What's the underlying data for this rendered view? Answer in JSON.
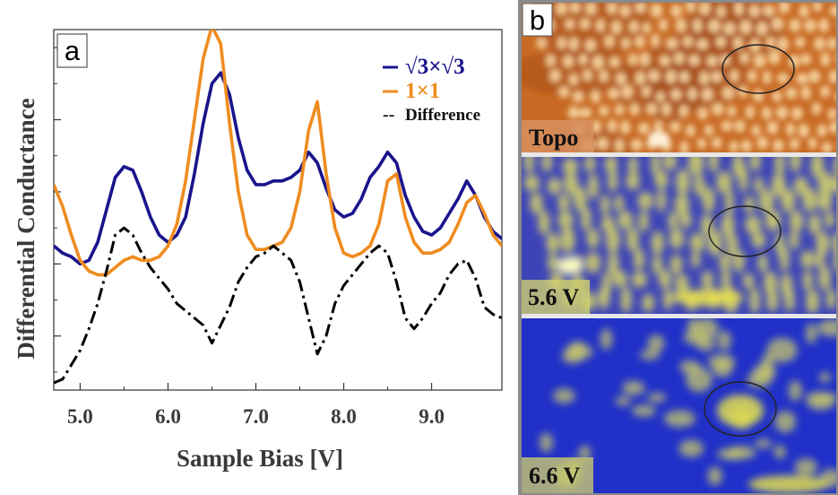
{
  "chart_data": {
    "type": "line",
    "panel_label": "a",
    "xlabel": "Sample Bias [V]",
    "ylabel": "Differential Conductance",
    "xlim": [
      4.7,
      9.8
    ],
    "ylim": [
      0,
      10
    ],
    "x_ticks": [
      "5.0",
      "6.0",
      "7.0",
      "8.0",
      "9.0"
    ],
    "x_tick_values": [
      5.0,
      6.0,
      7.0,
      8.0,
      9.0
    ],
    "y_tick_values": [
      1.5,
      3.5,
      5.5,
      7.5,
      9.5
    ],
    "grid": false,
    "legend_position": "top-right",
    "series": [
      {
        "name": "√3×√3",
        "color": "#1a148c",
        "style": "solid",
        "x": [
          4.7,
          4.8,
          4.9,
          5.0,
          5.1,
          5.2,
          5.3,
          5.4,
          5.5,
          5.6,
          5.7,
          5.8,
          5.9,
          6.0,
          6.1,
          6.2,
          6.3,
          6.4,
          6.5,
          6.6,
          6.7,
          6.8,
          6.9,
          7.0,
          7.1,
          7.2,
          7.3,
          7.4,
          7.5,
          7.6,
          7.7,
          7.8,
          7.9,
          8.0,
          8.1,
          8.2,
          8.3,
          8.4,
          8.5,
          8.6,
          8.7,
          8.8,
          8.9,
          9.0,
          9.1,
          9.2,
          9.3,
          9.4,
          9.5,
          9.6,
          9.7,
          9.8
        ],
        "y": [
          4.0,
          3.8,
          3.7,
          3.5,
          3.6,
          4.1,
          5.0,
          5.9,
          6.2,
          6.1,
          5.5,
          4.8,
          4.3,
          4.1,
          4.3,
          4.8,
          6.0,
          7.4,
          8.5,
          8.8,
          8.2,
          7.0,
          6.1,
          5.7,
          5.7,
          5.8,
          5.8,
          5.9,
          6.1,
          6.6,
          6.3,
          5.6,
          5.0,
          4.8,
          4.9,
          5.3,
          5.9,
          6.2,
          6.6,
          6.3,
          5.4,
          4.8,
          4.4,
          4.3,
          4.5,
          4.9,
          5.3,
          5.8,
          5.4,
          4.8,
          4.4,
          4.2
        ]
      },
      {
        "name": "1×1",
        "color": "#ef8c1f",
        "style": "solid",
        "x": [
          4.7,
          4.8,
          4.9,
          5.0,
          5.1,
          5.2,
          5.3,
          5.4,
          5.5,
          5.6,
          5.7,
          5.8,
          5.9,
          6.0,
          6.1,
          6.2,
          6.3,
          6.4,
          6.5,
          6.6,
          6.7,
          6.8,
          6.9,
          7.0,
          7.1,
          7.2,
          7.3,
          7.4,
          7.5,
          7.6,
          7.7,
          7.8,
          7.9,
          8.0,
          8.1,
          8.2,
          8.3,
          8.4,
          8.5,
          8.6,
          8.7,
          8.8,
          8.9,
          9.0,
          9.1,
          9.2,
          9.3,
          9.4,
          9.5,
          9.6,
          9.7,
          9.8
        ],
        "y": [
          5.7,
          5.1,
          4.3,
          3.6,
          3.3,
          3.2,
          3.2,
          3.4,
          3.6,
          3.7,
          3.6,
          3.6,
          3.7,
          4.0,
          4.6,
          5.8,
          7.5,
          9.2,
          10.1,
          9.6,
          7.4,
          5.5,
          4.3,
          3.9,
          3.9,
          4.0,
          4.1,
          4.5,
          5.5,
          7.2,
          8.0,
          6.0,
          4.5,
          3.8,
          3.7,
          3.8,
          4.0,
          4.6,
          5.8,
          6.0,
          4.8,
          4.1,
          3.8,
          3.8,
          3.9,
          4.1,
          4.6,
          5.2,
          5.4,
          4.9,
          4.3,
          4.0
        ]
      },
      {
        "name": "Difference",
        "color": "#000000",
        "style": "dashdot",
        "x": [
          4.7,
          4.8,
          4.9,
          5.0,
          5.1,
          5.2,
          5.3,
          5.4,
          5.5,
          5.6,
          5.7,
          5.8,
          5.9,
          6.0,
          6.1,
          6.2,
          6.3,
          6.4,
          6.5,
          6.6,
          6.7,
          6.8,
          6.9,
          7.0,
          7.1,
          7.2,
          7.3,
          7.4,
          7.5,
          7.6,
          7.7,
          7.8,
          7.9,
          8.0,
          8.1,
          8.2,
          8.3,
          8.4,
          8.5,
          8.6,
          8.7,
          8.8,
          8.9,
          9.0,
          9.1,
          9.2,
          9.3,
          9.4,
          9.5,
          9.6,
          9.7,
          9.8
        ],
        "y": [
          0.2,
          0.3,
          0.7,
          1.1,
          1.7,
          2.4,
          3.3,
          4.3,
          4.5,
          4.3,
          3.8,
          3.4,
          3.1,
          2.8,
          2.4,
          2.2,
          2.0,
          1.8,
          1.3,
          1.8,
          2.3,
          3.0,
          3.4,
          3.7,
          3.8,
          4.0,
          3.8,
          3.6,
          3.0,
          2.0,
          1.0,
          1.5,
          2.4,
          2.9,
          3.2,
          3.5,
          3.8,
          4.0,
          3.8,
          3.0,
          2.0,
          1.7,
          2.0,
          2.4,
          2.7,
          3.2,
          3.5,
          3.6,
          3.1,
          2.3,
          2.1,
          2.0
        ]
      }
    ]
  },
  "panel_b": {
    "panel_label": "b",
    "maps": [
      {
        "label": "Topo",
        "colormap": "orange"
      },
      {
        "label": "5.6 V",
        "colormap": "blue-yellow"
      },
      {
        "label": "6.6 V",
        "colormap": "blue-yellow"
      }
    ]
  },
  "legend_dash_glyph": "--"
}
